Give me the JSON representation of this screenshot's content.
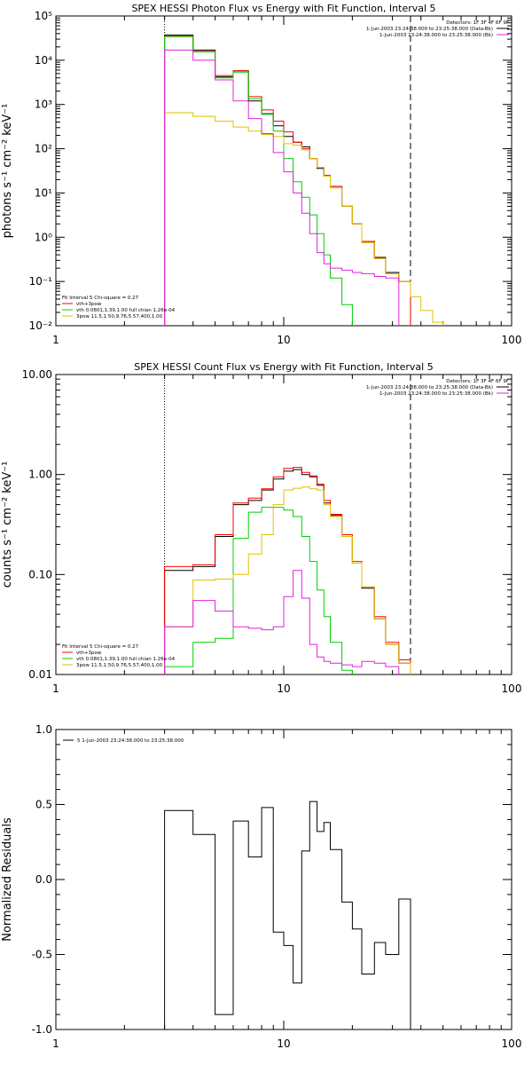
{
  "chart_data": [
    {
      "type": "line",
      "title": "SPEX HESSI Photon Flux vs Energy with Fit Function, Interval 5",
      "ylabel": "photons s⁻¹ cm⁻² keV⁻¹",
      "xscale": "log",
      "yscale": "log",
      "xlim": [
        1,
        100
      ],
      "ylim": [
        0.01,
        100000
      ],
      "xticks": [
        {
          "v": 1,
          "label": "1"
        },
        {
          "v": 10,
          "label": "10"
        },
        {
          "v": 100,
          "label": "100"
        }
      ],
      "yticks": [
        {
          "v": 0.01,
          "label": "10⁻²"
        },
        {
          "v": 0.1,
          "label": "10⁻¹"
        },
        {
          "v": 1,
          "label": "10⁰"
        },
        {
          "v": 10,
          "label": "10¹"
        },
        {
          "v": 100,
          "label": "10²"
        },
        {
          "v": 1000,
          "label": "10³"
        },
        {
          "v": 10000,
          "label": "10⁴"
        },
        {
          "v": 100000,
          "label": "10⁵"
        }
      ],
      "vlines": [
        {
          "x": 3,
          "style": "dotted"
        },
        {
          "x": 36,
          "style": "dashed"
        }
      ],
      "legend_top_right": {
        "lines": [
          {
            "text": "Detectors: 1F 3F 4F 6F 9F",
            "color": "#000000",
            "swatch": false
          },
          {
            "text": "1-Jun-2003 23:24:38.000 to 23:25:38.000 (Data-Bk)",
            "color": "#000000",
            "swatch": true
          },
          {
            "text": "1-Jun-2003 23:24:38.000 to 23:25:38.000 (Bk)",
            "color": "#e020e0",
            "swatch": true
          }
        ]
      },
      "legend_bottom_left": {
        "lines": [
          {
            "text": "Fit Interval 5   Chi-square = 0.27",
            "color": "#000000",
            "swatch": false
          },
          {
            "text": "vth+3pow",
            "color": "#ff0000",
            "swatch": true
          },
          {
            "text": "vth 0.0801,1.39,1.00  full chian 1.26e-04",
            "color": "#00d000",
            "swatch": true
          },
          {
            "text": "3pow 11.5,1.50,9.76,5.57,400,1.00",
            "color": "#e0c000",
            "swatch": true
          }
        ]
      },
      "series": [
        {
          "color": "#000000",
          "edges": [
            3,
            4,
            5,
            6,
            7,
            8,
            9,
            10,
            11,
            12,
            13,
            14,
            15,
            16,
            18,
            20,
            22,
            25,
            28,
            32,
            36
          ],
          "values": [
            37000,
            17000,
            4200,
            5800,
            1200,
            620,
            330,
            190,
            140,
            110,
            60,
            36,
            24,
            14,
            5,
            2,
            0.8,
            0.35,
            0.16,
            0.1
          ]
        },
        {
          "color": "#ff0000",
          "edges": [
            3,
            4,
            5,
            6,
            7,
            8,
            9,
            10,
            11,
            12,
            13,
            14,
            15,
            16,
            18,
            20,
            22,
            25,
            28,
            32,
            36
          ],
          "values": [
            35000,
            16000,
            4500,
            5800,
            1500,
            750,
            420,
            240,
            140,
            100,
            60,
            38,
            25,
            14,
            5,
            2,
            0.8,
            0.33,
            0.15,
            0.1
          ]
        },
        {
          "color": "#00d000",
          "edges": [
            3,
            4,
            5,
            6,
            7,
            8,
            9,
            10,
            11,
            12,
            13,
            14,
            15,
            16,
            18,
            20,
            22
          ],
          "values": [
            34000,
            15500,
            4000,
            5400,
            1350,
            600,
            250,
            60,
            18,
            8,
            3.2,
            1.2,
            0.4,
            0.12,
            0.03,
            0.006
          ]
        },
        {
          "color": "#e0c000",
          "edges": [
            3,
            4,
            5,
            6,
            7,
            8,
            9,
            10,
            11,
            12,
            13,
            14,
            15,
            16,
            18,
            20,
            22,
            25,
            28,
            32,
            36,
            40,
            45,
            50,
            56
          ],
          "values": [
            650,
            540,
            420,
            310,
            250,
            210,
            190,
            130,
            120,
            95,
            60,
            38,
            24,
            13,
            5,
            2,
            0.75,
            0.33,
            0.15,
            0.1,
            0.045,
            0.022,
            0.012,
            0.005
          ]
        },
        {
          "color": "#e020e0",
          "edges": [
            3,
            4,
            5,
            6,
            7,
            8,
            9,
            10,
            11,
            12,
            13,
            14,
            15,
            16,
            18,
            20,
            22,
            25,
            28,
            32,
            36
          ],
          "values": [
            17000,
            10000,
            3600,
            1200,
            480,
            220,
            82,
            30,
            10,
            3.5,
            1.2,
            0.45,
            0.25,
            0.2,
            0.18,
            0.16,
            0.15,
            0.13,
            0.12,
            0.005
          ]
        }
      ]
    },
    {
      "type": "line",
      "title": "SPEX HESSI Count Flux vs Energy with Fit Function, Interval 5",
      "ylabel": "counts s⁻¹ cm⁻² keV⁻¹",
      "xscale": "log",
      "yscale": "log",
      "xlim": [
        1,
        100
      ],
      "ylim": [
        0.01,
        10
      ],
      "xticks": [
        {
          "v": 1,
          "label": "1"
        },
        {
          "v": 10,
          "label": "10"
        },
        {
          "v": 100,
          "label": "100"
        }
      ],
      "yticks": [
        {
          "v": 0.01,
          "label": "0.01"
        },
        {
          "v": 0.1,
          "label": "0.10"
        },
        {
          "v": 1,
          "label": "1.00"
        },
        {
          "v": 10,
          "label": "10.00"
        }
      ],
      "vlines": [
        {
          "x": 3,
          "style": "dotted"
        },
        {
          "x": 36,
          "style": "dashed"
        }
      ],
      "legend_top_right": {
        "lines": [
          {
            "text": "Detectors: 1F 3F 4F 6F 9F",
            "color": "#000000",
            "swatch": false
          },
          {
            "text": "1-Jun-2003 23:24:38.000 to 23:25:38.000 (Data-Bk)",
            "color": "#000000",
            "swatch": true
          },
          {
            "text": "1-Jun-2003 23:24:38.000 to 23:25:38.000 (Bk)",
            "color": "#e020e0",
            "swatch": true
          }
        ]
      },
      "legend_bottom_left": {
        "lines": [
          {
            "text": "Fit Interval 5   Chi-square = 0.27",
            "color": "#000000",
            "swatch": false
          },
          {
            "text": "vth+3pow",
            "color": "#ff0000",
            "swatch": true
          },
          {
            "text": "vth 0.0801,1.39,1.00  full chian 1.26e-04",
            "color": "#00d000",
            "swatch": true
          },
          {
            "text": "3pow 11.5,1.50,9.76,5.57,400,1.00",
            "color": "#e0c000",
            "swatch": true
          }
        ]
      },
      "series": [
        {
          "color": "#000000",
          "edges": [
            3,
            4,
            5,
            6,
            7,
            8,
            9,
            10,
            11,
            12,
            13,
            14,
            15,
            16,
            18,
            20,
            22,
            25,
            28,
            32,
            36
          ],
          "values": [
            0.11,
            0.12,
            0.24,
            0.5,
            0.55,
            0.7,
            0.9,
            1.08,
            1.12,
            1.0,
            0.95,
            0.78,
            0.52,
            0.39,
            0.24,
            0.13,
            0.073,
            0.036,
            0.02,
            0.013
          ]
        },
        {
          "color": "#ff0000",
          "edges": [
            3,
            4,
            5,
            6,
            7,
            8,
            9,
            10,
            11,
            12,
            13,
            14,
            15,
            16,
            18,
            20,
            22,
            25,
            28,
            32,
            36
          ],
          "values": [
            0.12,
            0.125,
            0.25,
            0.52,
            0.58,
            0.72,
            0.95,
            1.15,
            1.18,
            1.05,
            0.97,
            0.8,
            0.55,
            0.4,
            0.25,
            0.135,
            0.075,
            0.038,
            0.021,
            0.014
          ]
        },
        {
          "color": "#00d000",
          "edges": [
            3,
            4,
            5,
            6,
            7,
            8,
            9,
            10,
            11,
            12,
            13,
            14,
            15,
            16,
            18,
            20,
            22
          ],
          "values": [
            0.012,
            0.021,
            0.023,
            0.23,
            0.42,
            0.47,
            0.47,
            0.44,
            0.38,
            0.24,
            0.135,
            0.07,
            0.038,
            0.021,
            0.011,
            0.009
          ]
        },
        {
          "color": "#e0c000",
          "edges": [
            3,
            4,
            5,
            6,
            7,
            8,
            9,
            10,
            11,
            12,
            13,
            14,
            15,
            16,
            18,
            20,
            22,
            25,
            28,
            32,
            36,
            40
          ],
          "values": [
            0.03,
            0.088,
            0.09,
            0.1,
            0.16,
            0.25,
            0.5,
            0.7,
            0.73,
            0.75,
            0.72,
            0.7,
            0.5,
            0.38,
            0.24,
            0.13,
            0.075,
            0.036,
            0.02,
            0.013,
            0.009
          ]
        },
        {
          "color": "#e020e0",
          "edges": [
            3,
            4,
            5,
            6,
            7,
            8,
            9,
            10,
            11,
            12,
            13,
            14,
            15,
            16,
            18,
            20,
            22,
            25,
            28,
            32,
            36
          ],
          "values": [
            0.03,
            0.055,
            0.043,
            0.03,
            0.029,
            0.028,
            0.03,
            0.06,
            0.11,
            0.058,
            0.02,
            0.015,
            0.0135,
            0.013,
            0.0125,
            0.012,
            0.0135,
            0.013,
            0.012,
            0.009
          ]
        }
      ]
    },
    {
      "type": "line",
      "title": "",
      "ylabel": "Normalized Residuals",
      "xscale": "log",
      "yscale": "linear",
      "xlim": [
        1,
        100
      ],
      "ylim": [
        -1,
        1
      ],
      "xticks": [
        {
          "v": 1,
          "label": "1"
        },
        {
          "v": 10,
          "label": "10"
        },
        {
          "v": 100,
          "label": "100"
        }
      ],
      "yticks": [
        {
          "v": -1,
          "label": "-1.0"
        },
        {
          "v": -0.5,
          "label": "-0.5"
        },
        {
          "v": 0,
          "label": "0.0"
        },
        {
          "v": 0.5,
          "label": "0.5"
        },
        {
          "v": 1,
          "label": "1.0"
        }
      ],
      "vlines": [],
      "legend_top_left": {
        "lines": [
          {
            "text": "5  1-Jun-2003 23:24:38.000 to 23:25:38.000",
            "color": "#000000",
            "swatch": true
          }
        ]
      },
      "series": [
        {
          "color": "#000000",
          "edges": [
            3,
            4,
            5,
            6,
            7,
            8,
            9,
            10,
            11,
            12,
            13,
            14,
            15,
            16,
            18,
            20,
            22,
            25,
            28,
            32,
            36
          ],
          "values": [
            0.46,
            0.3,
            -0.9,
            0.39,
            0.15,
            0.48,
            -0.35,
            -0.44,
            -0.69,
            0.19,
            0.52,
            0.32,
            0.38,
            0.2,
            -0.15,
            -0.33,
            -0.63,
            -0.42,
            -0.5,
            -0.13
          ]
        }
      ]
    }
  ]
}
